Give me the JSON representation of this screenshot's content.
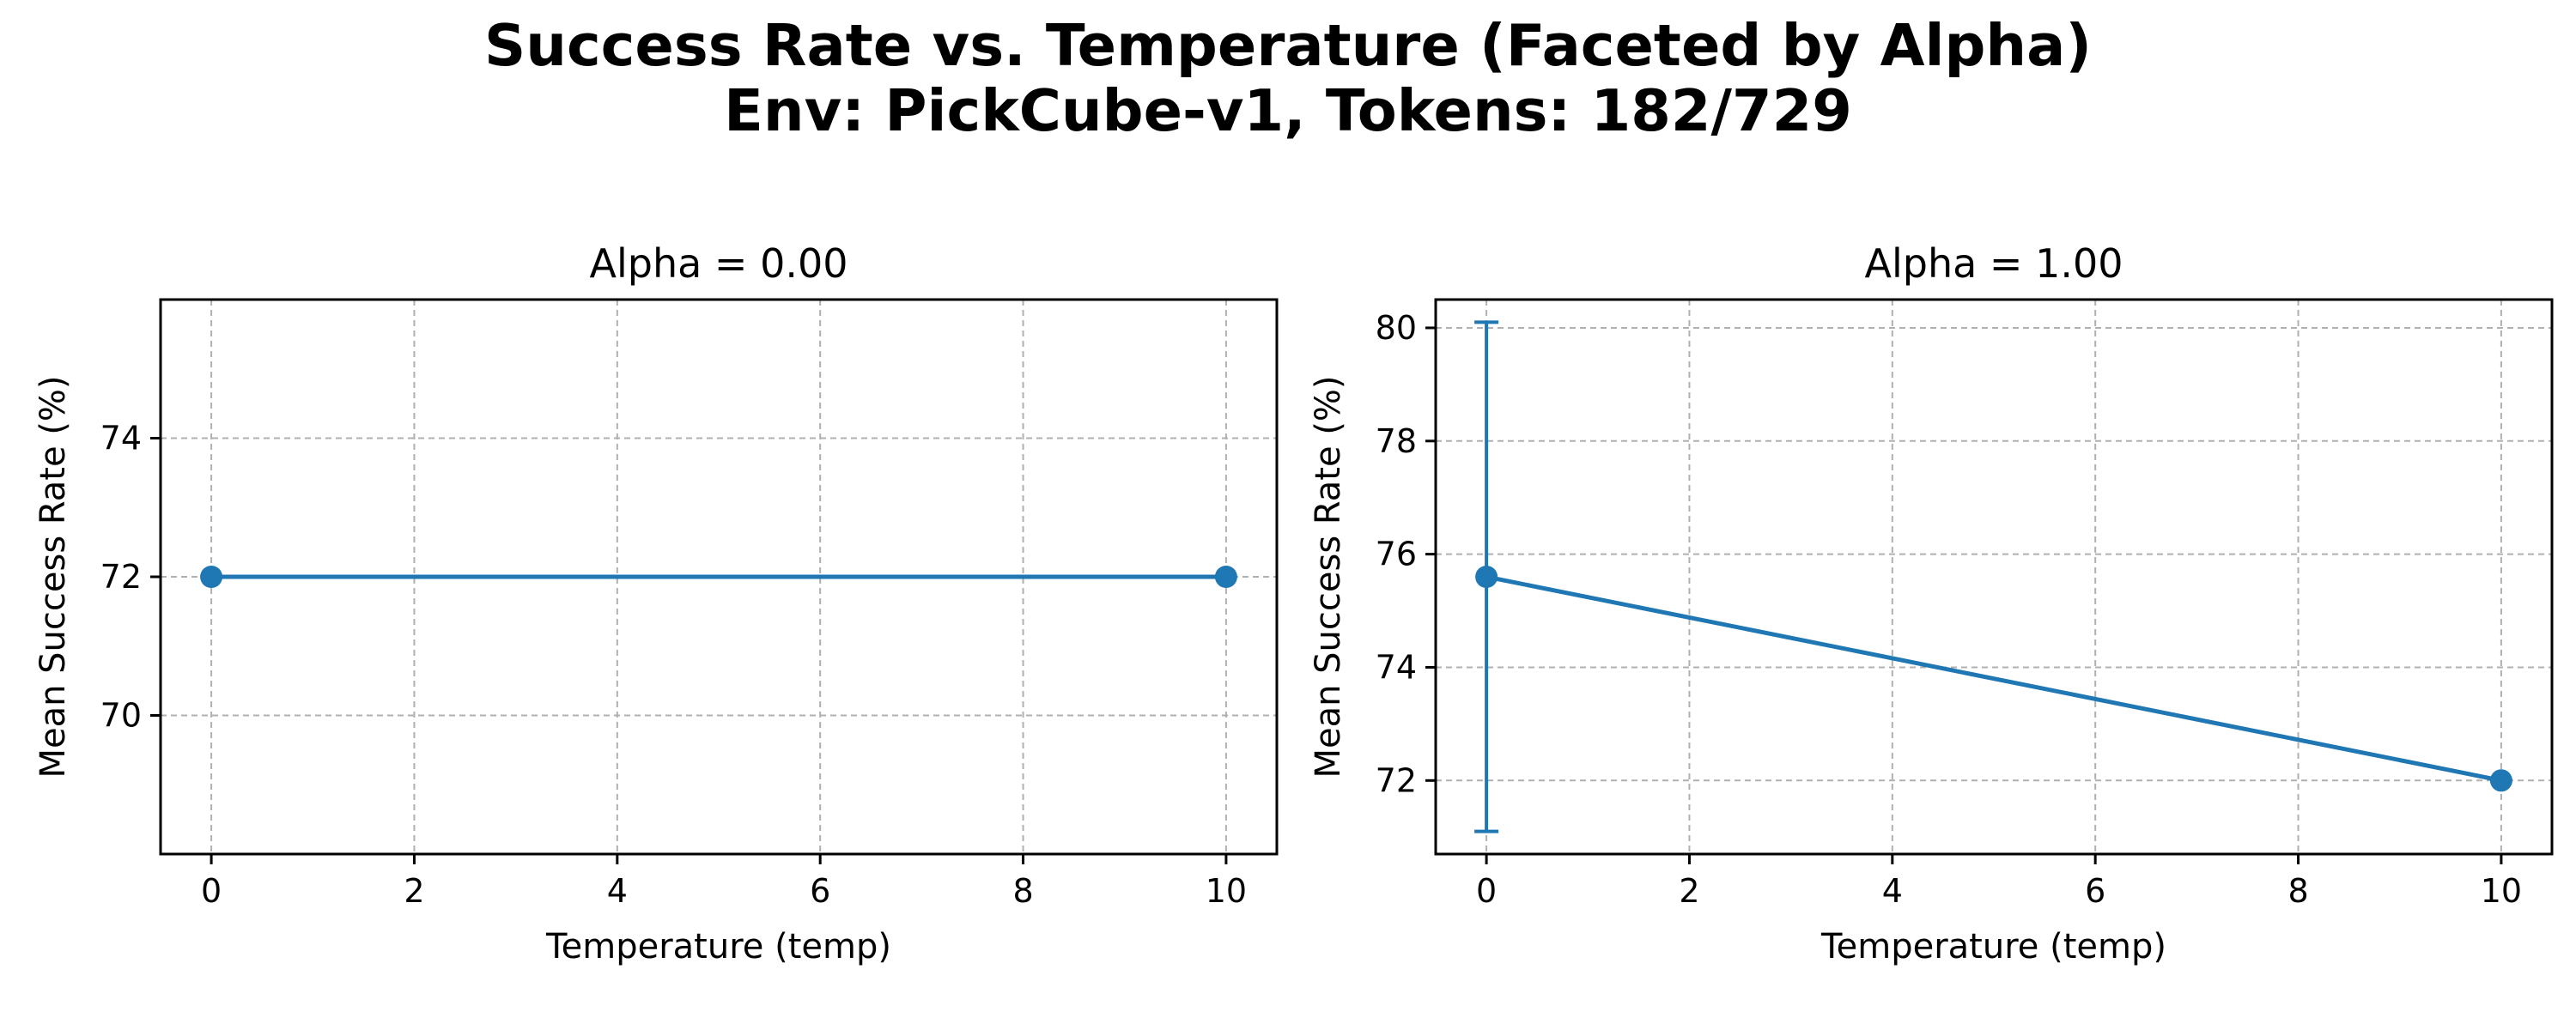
{
  "figure": {
    "title_lines": [
      "Success Rate vs. Temperature (Faceted by Alpha)",
      "Env: PickCube-v1, Tokens: 182/729"
    ],
    "line_color": "#1f77b4",
    "grid_color": "#b0b0b0"
  },
  "chart_data": [
    {
      "type": "line",
      "title": "Alpha = 0.00",
      "xlabel": "Temperature (temp)",
      "ylabel": "Mean Success Rate (%)",
      "xlim": [
        -0.5,
        10.5
      ],
      "ylim": [
        68.0,
        76.0
      ],
      "xticks": [
        0,
        2,
        4,
        6,
        8,
        10
      ],
      "yticks": [
        70,
        72,
        74
      ],
      "grid": true,
      "series": [
        {
          "x": [
            0,
            10
          ],
          "y": [
            72.0,
            72.0
          ],
          "yerr": [
            0,
            0
          ]
        }
      ]
    },
    {
      "type": "line",
      "title": "Alpha = 1.00",
      "xlabel": "Temperature (temp)",
      "ylabel": "Mean Success Rate (%)",
      "xlim": [
        -0.5,
        10.5
      ],
      "ylim": [
        70.7,
        80.5
      ],
      "xticks": [
        0,
        2,
        4,
        6,
        8,
        10
      ],
      "yticks": [
        72,
        74,
        76,
        78,
        80
      ],
      "grid": true,
      "series": [
        {
          "x": [
            0,
            10
          ],
          "y": [
            75.6,
            72.0
          ],
          "yerr": [
            4.5,
            0
          ]
        }
      ]
    }
  ]
}
